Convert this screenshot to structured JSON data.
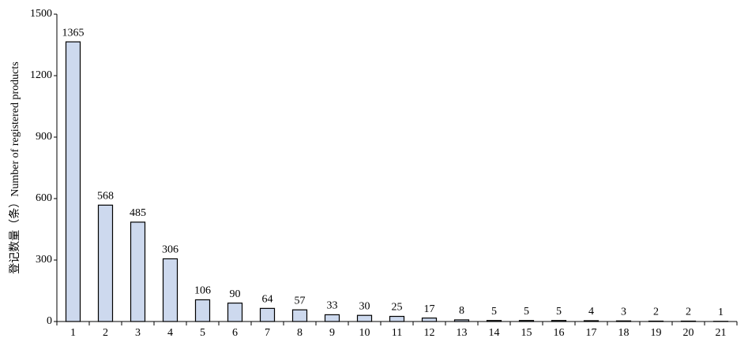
{
  "chart_data": {
    "type": "bar",
    "y_label": "登记数量（条）Number of registered products",
    "categories": [
      "1",
      "2",
      "3",
      "4",
      "5",
      "6",
      "7",
      "8",
      "9",
      "10",
      "11",
      "12",
      "13",
      "14",
      "15",
      "16",
      "17",
      "18",
      "19",
      "20",
      "21"
    ],
    "values": [
      1365,
      568,
      485,
      306,
      106,
      90,
      64,
      57,
      33,
      30,
      25,
      17,
      8,
      5,
      5,
      5,
      4,
      3,
      2,
      2,
      1
    ],
    "color": "#cdd9ee",
    "ylim": [
      0,
      1500
    ],
    "yticks": [
      0,
      300,
      600,
      900,
      1200,
      1500
    ]
  }
}
